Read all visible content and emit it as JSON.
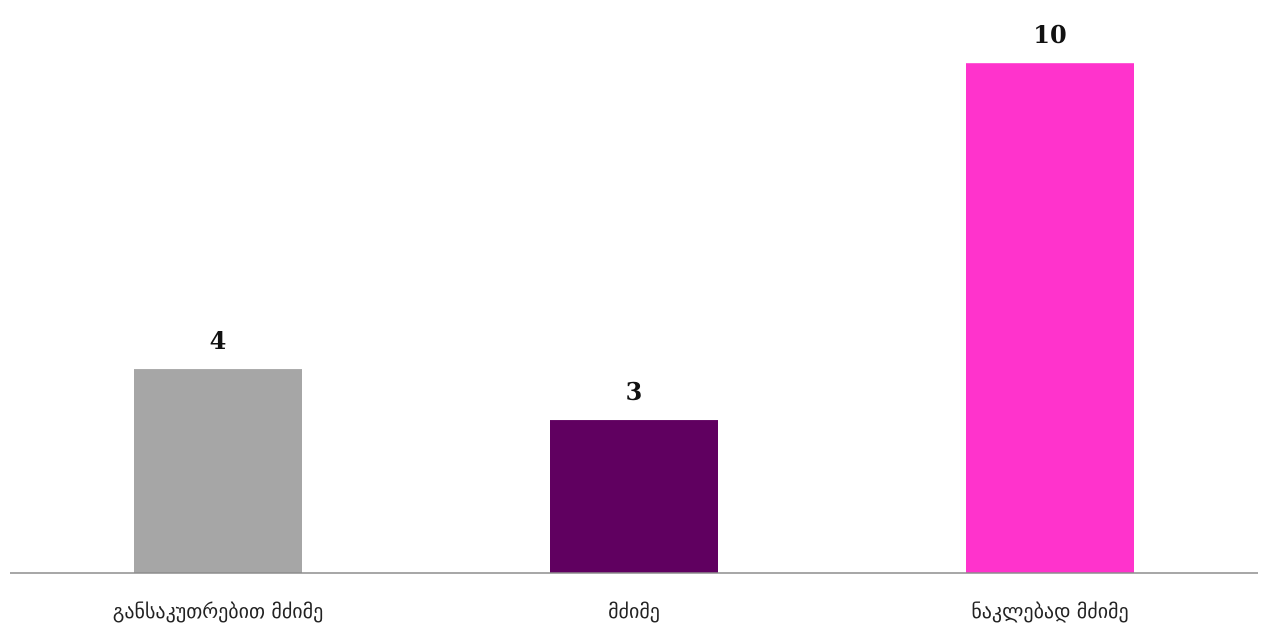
{
  "chart_data": {
    "type": "bar",
    "title": "",
    "xlabel": "",
    "ylabel": "",
    "categories": [
      "განსაკუთრებით მძიმე",
      "მძიმე",
      "ნაკლებად მძიმე"
    ],
    "values": [
      4,
      3,
      10
    ],
    "colors": [
      "#a6a6a6",
      "#600060",
      "#ff33cc"
    ],
    "data_labels": [
      "4",
      "3",
      "10"
    ],
    "ylim": [
      0,
      10.2
    ],
    "grid": false,
    "legend": "none",
    "axis_color": "#8c8c8c"
  }
}
